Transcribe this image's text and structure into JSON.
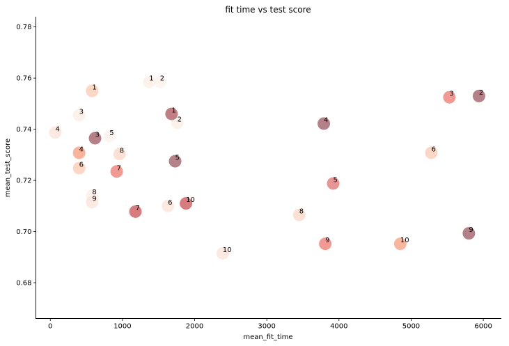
{
  "chart_data": {
    "type": "scatter",
    "title": "fit time vs test score",
    "xlabel": "mean_fit_time",
    "ylabel": "mean_test_score",
    "xlim": [
      -200,
      6250
    ],
    "ylim": [
      0.666,
      0.784
    ],
    "xticks": [
      0,
      1000,
      2000,
      3000,
      4000,
      5000,
      6000
    ],
    "xtick_labels": [
      "0",
      "1000",
      "2000",
      "3000",
      "4000",
      "5000",
      "6000"
    ],
    "yticks": [
      0.68,
      0.7,
      0.72,
      0.74,
      0.76,
      0.78
    ],
    "ytick_labels": [
      "0.68",
      "0.70",
      "0.72",
      "0.74",
      "0.76",
      "0.78"
    ],
    "grid": false,
    "legend": false,
    "points": [
      {
        "x": 1370,
        "y": 0.7585,
        "label": "1",
        "color": "#fdeee8"
      },
      {
        "x": 1520,
        "y": 0.7585,
        "label": "2",
        "color": "#fdf3ef"
      },
      {
        "x": 400,
        "y": 0.7455,
        "label": "3",
        "color": "#fdeee8"
      },
      {
        "x": 70,
        "y": 0.7387,
        "label": "4",
        "color": "#fce6dd"
      },
      {
        "x": 820,
        "y": 0.7372,
        "label": "5",
        "color": "#fdf3ef"
      },
      {
        "x": 400,
        "y": 0.7305,
        "label": "7",
        "color": "#fdeee8"
      },
      {
        "x": 580,
        "y": 0.714,
        "label": "8",
        "color": "#fdeee8"
      },
      {
        "x": 1760,
        "y": 0.7425,
        "label": "2",
        "color": "#fdeee8"
      },
      {
        "x": 580,
        "y": 0.7115,
        "label": "9",
        "color": "#fce6dd"
      },
      {
        "x": 1630,
        "y": 0.71,
        "label": "6",
        "color": "#fce6dd"
      },
      {
        "x": 2390,
        "y": 0.6915,
        "label": "10",
        "color": "#fce6dd"
      },
      {
        "x": 960,
        "y": 0.7303,
        "label": "8",
        "color": "#fbdccd"
      },
      {
        "x": 3450,
        "y": 0.7065,
        "label": "8",
        "color": "#fbdccd"
      },
      {
        "x": 5280,
        "y": 0.7308,
        "label": "6",
        "color": "#fbd0bb"
      },
      {
        "x": 580,
        "y": 0.755,
        "label": "1",
        "color": "#fbd0bb"
      },
      {
        "x": 400,
        "y": 0.7248,
        "label": "6",
        "color": "#fbd0bb"
      },
      {
        "x": 400,
        "y": 0.7308,
        "label": "4",
        "color": "#f8a98e"
      },
      {
        "x": 4850,
        "y": 0.6952,
        "label": "10",
        "color": "#f8a98e"
      },
      {
        "x": 920,
        "y": 0.7235,
        "label": "7",
        "color": "#ee8880"
      },
      {
        "x": 5530,
        "y": 0.7525,
        "label": "3",
        "color": "#ee8880"
      },
      {
        "x": 3810,
        "y": 0.6952,
        "label": "9",
        "color": "#ee8880"
      },
      {
        "x": 3920,
        "y": 0.7188,
        "label": "5",
        "color": "#e48282"
      },
      {
        "x": 1180,
        "y": 0.7078,
        "label": "7",
        "color": "#cf6569"
      },
      {
        "x": 1880,
        "y": 0.711,
        "label": "10",
        "color": "#cf6569"
      },
      {
        "x": 1680,
        "y": 0.746,
        "label": "1",
        "color": "#b5696e"
      },
      {
        "x": 620,
        "y": 0.7365,
        "label": "3",
        "color": "#a86b73"
      },
      {
        "x": 1730,
        "y": 0.7275,
        "label": "5",
        "color": "#a86b73"
      },
      {
        "x": 3790,
        "y": 0.7422,
        "label": "4",
        "color": "#a86b73"
      },
      {
        "x": 5800,
        "y": 0.6993,
        "label": "9",
        "color": "#a86b73"
      },
      {
        "x": 5940,
        "y": 0.753,
        "label": "2",
        "color": "#a86b73"
      }
    ]
  }
}
